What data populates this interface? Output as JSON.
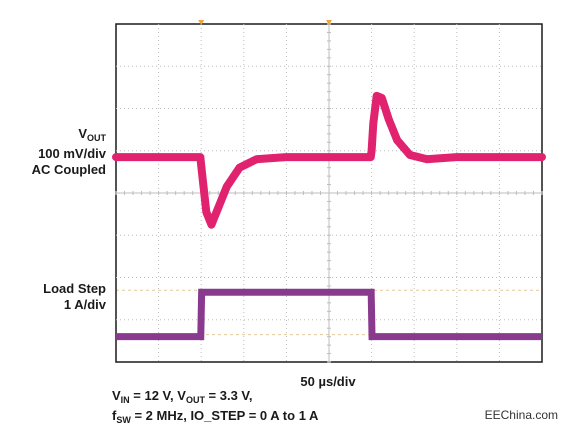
{
  "chart_data": {
    "type": "line",
    "title": "",
    "time_per_div_us": 50,
    "grid": true,
    "divisions": {
      "x": 10,
      "y": 8
    },
    "series": [
      {
        "name": "VOUT",
        "color": "#e0226f",
        "unit": "mV",
        "volts_per_div_mV": 100,
        "coupling": "AC",
        "x_us": [
          0,
          99,
          100,
          106,
          112,
          120,
          130,
          145,
          165,
          200,
          250,
          299,
          300,
          302,
          306,
          312,
          320,
          330,
          345,
          365,
          400,
          500
        ],
        "y_mV": [
          0,
          0,
          -20,
          -130,
          -160,
          -120,
          -70,
          -25,
          -5,
          0,
          0,
          0,
          15,
          80,
          145,
          140,
          90,
          40,
          5,
          -5,
          0,
          0
        ]
      },
      {
        "name": "Load Step",
        "color": "#8a3a8e",
        "unit": "A",
        "amps_per_div": 1,
        "x_us": [
          0,
          99.5,
          100.5,
          299.5,
          300.5,
          500
        ],
        "y_A": [
          0,
          0,
          1,
          1,
          0,
          0
        ]
      }
    ]
  },
  "labels": {
    "vout_main": "V",
    "vout_sub": "OUT",
    "vout_scale": "100 mV/div",
    "vout_coupling": "AC Coupled",
    "load_step": "Load Step",
    "load_scale": "1 A/div",
    "timebase": "50 µs/div"
  },
  "conditions": {
    "vin_main": "V",
    "vin_sub": "IN",
    "vin_value": " = 12 V, ",
    "vout_main": "V",
    "vout_sub": "OUT",
    "vout_value": " = 3.3 V,",
    "fsw_main": "f",
    "fsw_sub": "SW",
    "fsw_value": " = 2 MHz, IO_STEP = 0 A to 1 A"
  },
  "watermark": "EEChina.com"
}
